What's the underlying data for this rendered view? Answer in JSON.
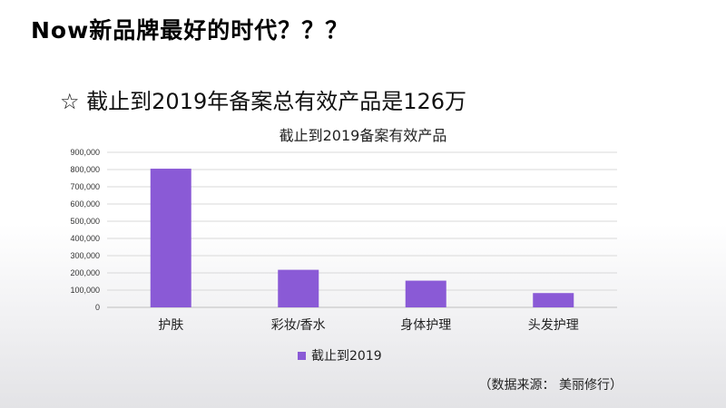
{
  "slide": {
    "title": "Now新品牌最好的时代？？？",
    "bullet_symbol": "☆",
    "bullet_text": "截止到2019年备案总有效产品是126万",
    "source": "（数据来源： 美丽修行）"
  },
  "colors": {
    "bar": "#8a5ad6",
    "grid": "#d9d9d9",
    "axis": "#bfbfbf"
  },
  "chart_data": {
    "type": "bar",
    "title": "截止到2019备案有效产品",
    "categories": [
      "护肤",
      "彩妆/香水",
      "身体护理",
      "头发护理"
    ],
    "series": [
      {
        "name": "截止到2019",
        "values": [
          805000,
          218000,
          155000,
          83000
        ]
      }
    ],
    "ylim": [
      0,
      900000
    ],
    "yticks": [
      "0",
      "100,000",
      "200,000",
      "300,000",
      "400,000",
      "500,000",
      "600,000",
      "700,000",
      "800,000",
      "900,000"
    ],
    "xlabel": "",
    "ylabel": "",
    "grid": true,
    "legend": "bottom"
  }
}
